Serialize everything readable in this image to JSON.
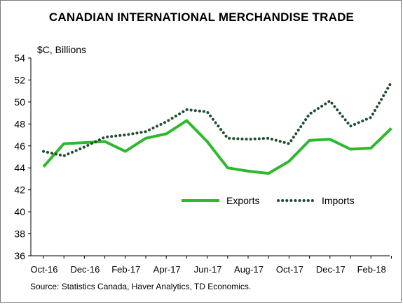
{
  "chart_data": {
    "type": "line",
    "title": "CANADIAN INTERNATIONAL MERCHANDISE TRADE",
    "ylabel": "$C, Billions",
    "xlabel": "",
    "ylim": [
      36,
      54
    ],
    "yticks": [
      36,
      38,
      40,
      42,
      44,
      46,
      48,
      50,
      52,
      54
    ],
    "x": [
      "Oct-16",
      "Nov-16",
      "Dec-16",
      "Jan-17",
      "Feb-17",
      "Mar-17",
      "Apr-17",
      "May-17",
      "Jun-17",
      "Jul-17",
      "Aug-17",
      "Sep-17",
      "Oct-17",
      "Nov-17",
      "Dec-17",
      "Jan-18",
      "Feb-18",
      "Mar-18"
    ],
    "xtick_labels": [
      "Oct-16",
      "Dec-16",
      "Feb-17",
      "Apr-17",
      "Jun-17",
      "Aug-17",
      "Oct-17",
      "Dec-17",
      "Feb-18"
    ],
    "series": [
      {
        "name": "Exports",
        "style": "solid",
        "color": "#2eb82e",
        "values": [
          44.1,
          46.2,
          46.3,
          46.4,
          45.5,
          46.7,
          47.1,
          48.3,
          46.4,
          44.0,
          43.7,
          43.5,
          44.6,
          46.5,
          46.6,
          45.7,
          45.8,
          47.6
        ]
      },
      {
        "name": "Imports",
        "style": "dotted",
        "color": "#1f4d2e",
        "values": [
          45.5,
          45.1,
          45.9,
          46.8,
          47.0,
          47.3,
          48.2,
          49.3,
          49.1,
          46.7,
          46.6,
          46.7,
          46.2,
          48.9,
          50.1,
          47.8,
          48.6,
          51.8
        ]
      }
    ],
    "legend_position": "center-right",
    "grid": false,
    "source": "Source: Statistics Canada, Haver Analytics, TD Economics."
  }
}
